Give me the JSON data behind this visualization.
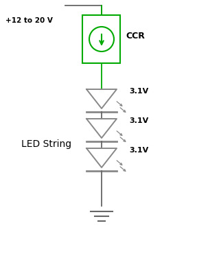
{
  "bg_color": "#ffffff",
  "wire_color": "#666666",
  "ccr_color": "#00aa00",
  "led_color": "#888888",
  "text_color": "#000000",
  "voltage_label": "+12 to 20 V",
  "ccr_label": "CCR",
  "led_string_label": "LED String",
  "led_voltage": "3.1V",
  "num_leds": 3,
  "figsize": [
    2.87,
    3.7
  ],
  "dpi": 100
}
